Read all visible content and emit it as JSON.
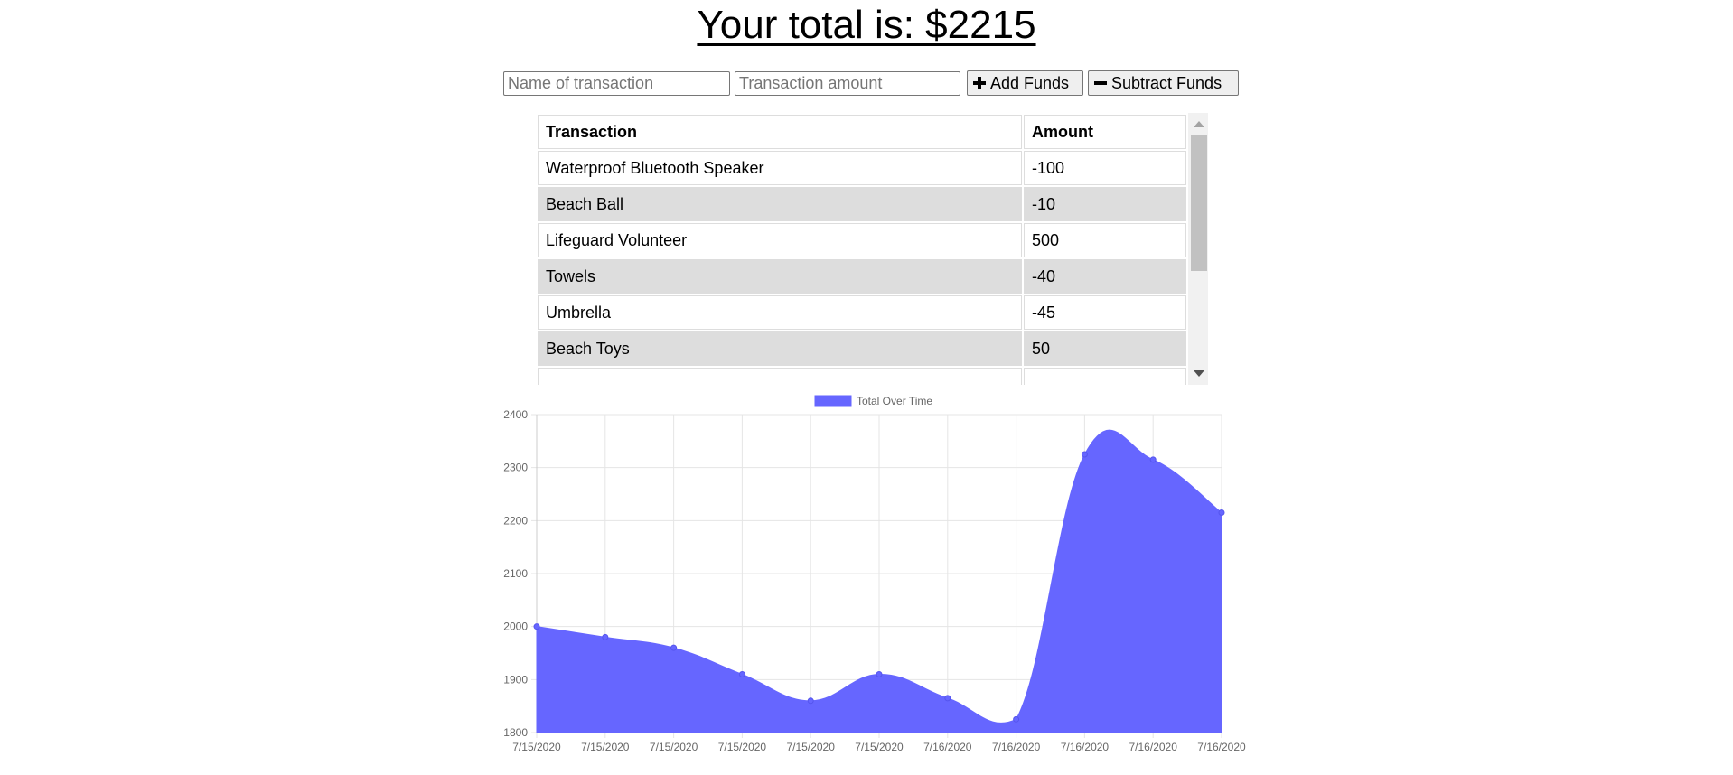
{
  "header": {
    "title": "Your total is: $2215"
  },
  "form": {
    "name_placeholder": "Name of transaction",
    "amount_placeholder": "Transaction amount",
    "add_label": "Add Funds",
    "subtract_label": "Subtract Funds",
    "add_icon": "plus-icon",
    "subtract_icon": "minus-icon"
  },
  "table": {
    "headers": [
      "Transaction",
      "Amount"
    ],
    "rows": [
      {
        "name": "Waterproof Bluetooth Speaker",
        "amount": "-100"
      },
      {
        "name": "Beach Ball",
        "amount": "-10"
      },
      {
        "name": "Lifeguard Volunteer",
        "amount": "500"
      },
      {
        "name": "Towels",
        "amount": "-40"
      },
      {
        "name": "Umbrella",
        "amount": "-45"
      },
      {
        "name": "Beach Toys",
        "amount": "50"
      }
    ]
  },
  "colors": {
    "area_fill": "#6666ff",
    "grid": "#e5e5e5",
    "row_alt": "#dddddd"
  },
  "chart_data": {
    "type": "area",
    "legend": "Total Over Time",
    "legend_position": "top",
    "x": [
      "7/15/2020",
      "7/15/2020",
      "7/15/2020",
      "7/15/2020",
      "7/15/2020",
      "7/15/2020",
      "7/16/2020",
      "7/16/2020",
      "7/16/2020",
      "7/16/2020",
      "7/16/2020"
    ],
    "series": [
      {
        "name": "Total Over Time",
        "values": [
          2000,
          1980,
          1960,
          1910,
          1860,
          1910,
          1865,
          1825,
          2325,
          2315,
          2215
        ]
      }
    ],
    "ylim": [
      1800,
      2400
    ],
    "yticks": [
      1800,
      1900,
      2000,
      2100,
      2200,
      2300,
      2400
    ],
    "grid": true
  }
}
